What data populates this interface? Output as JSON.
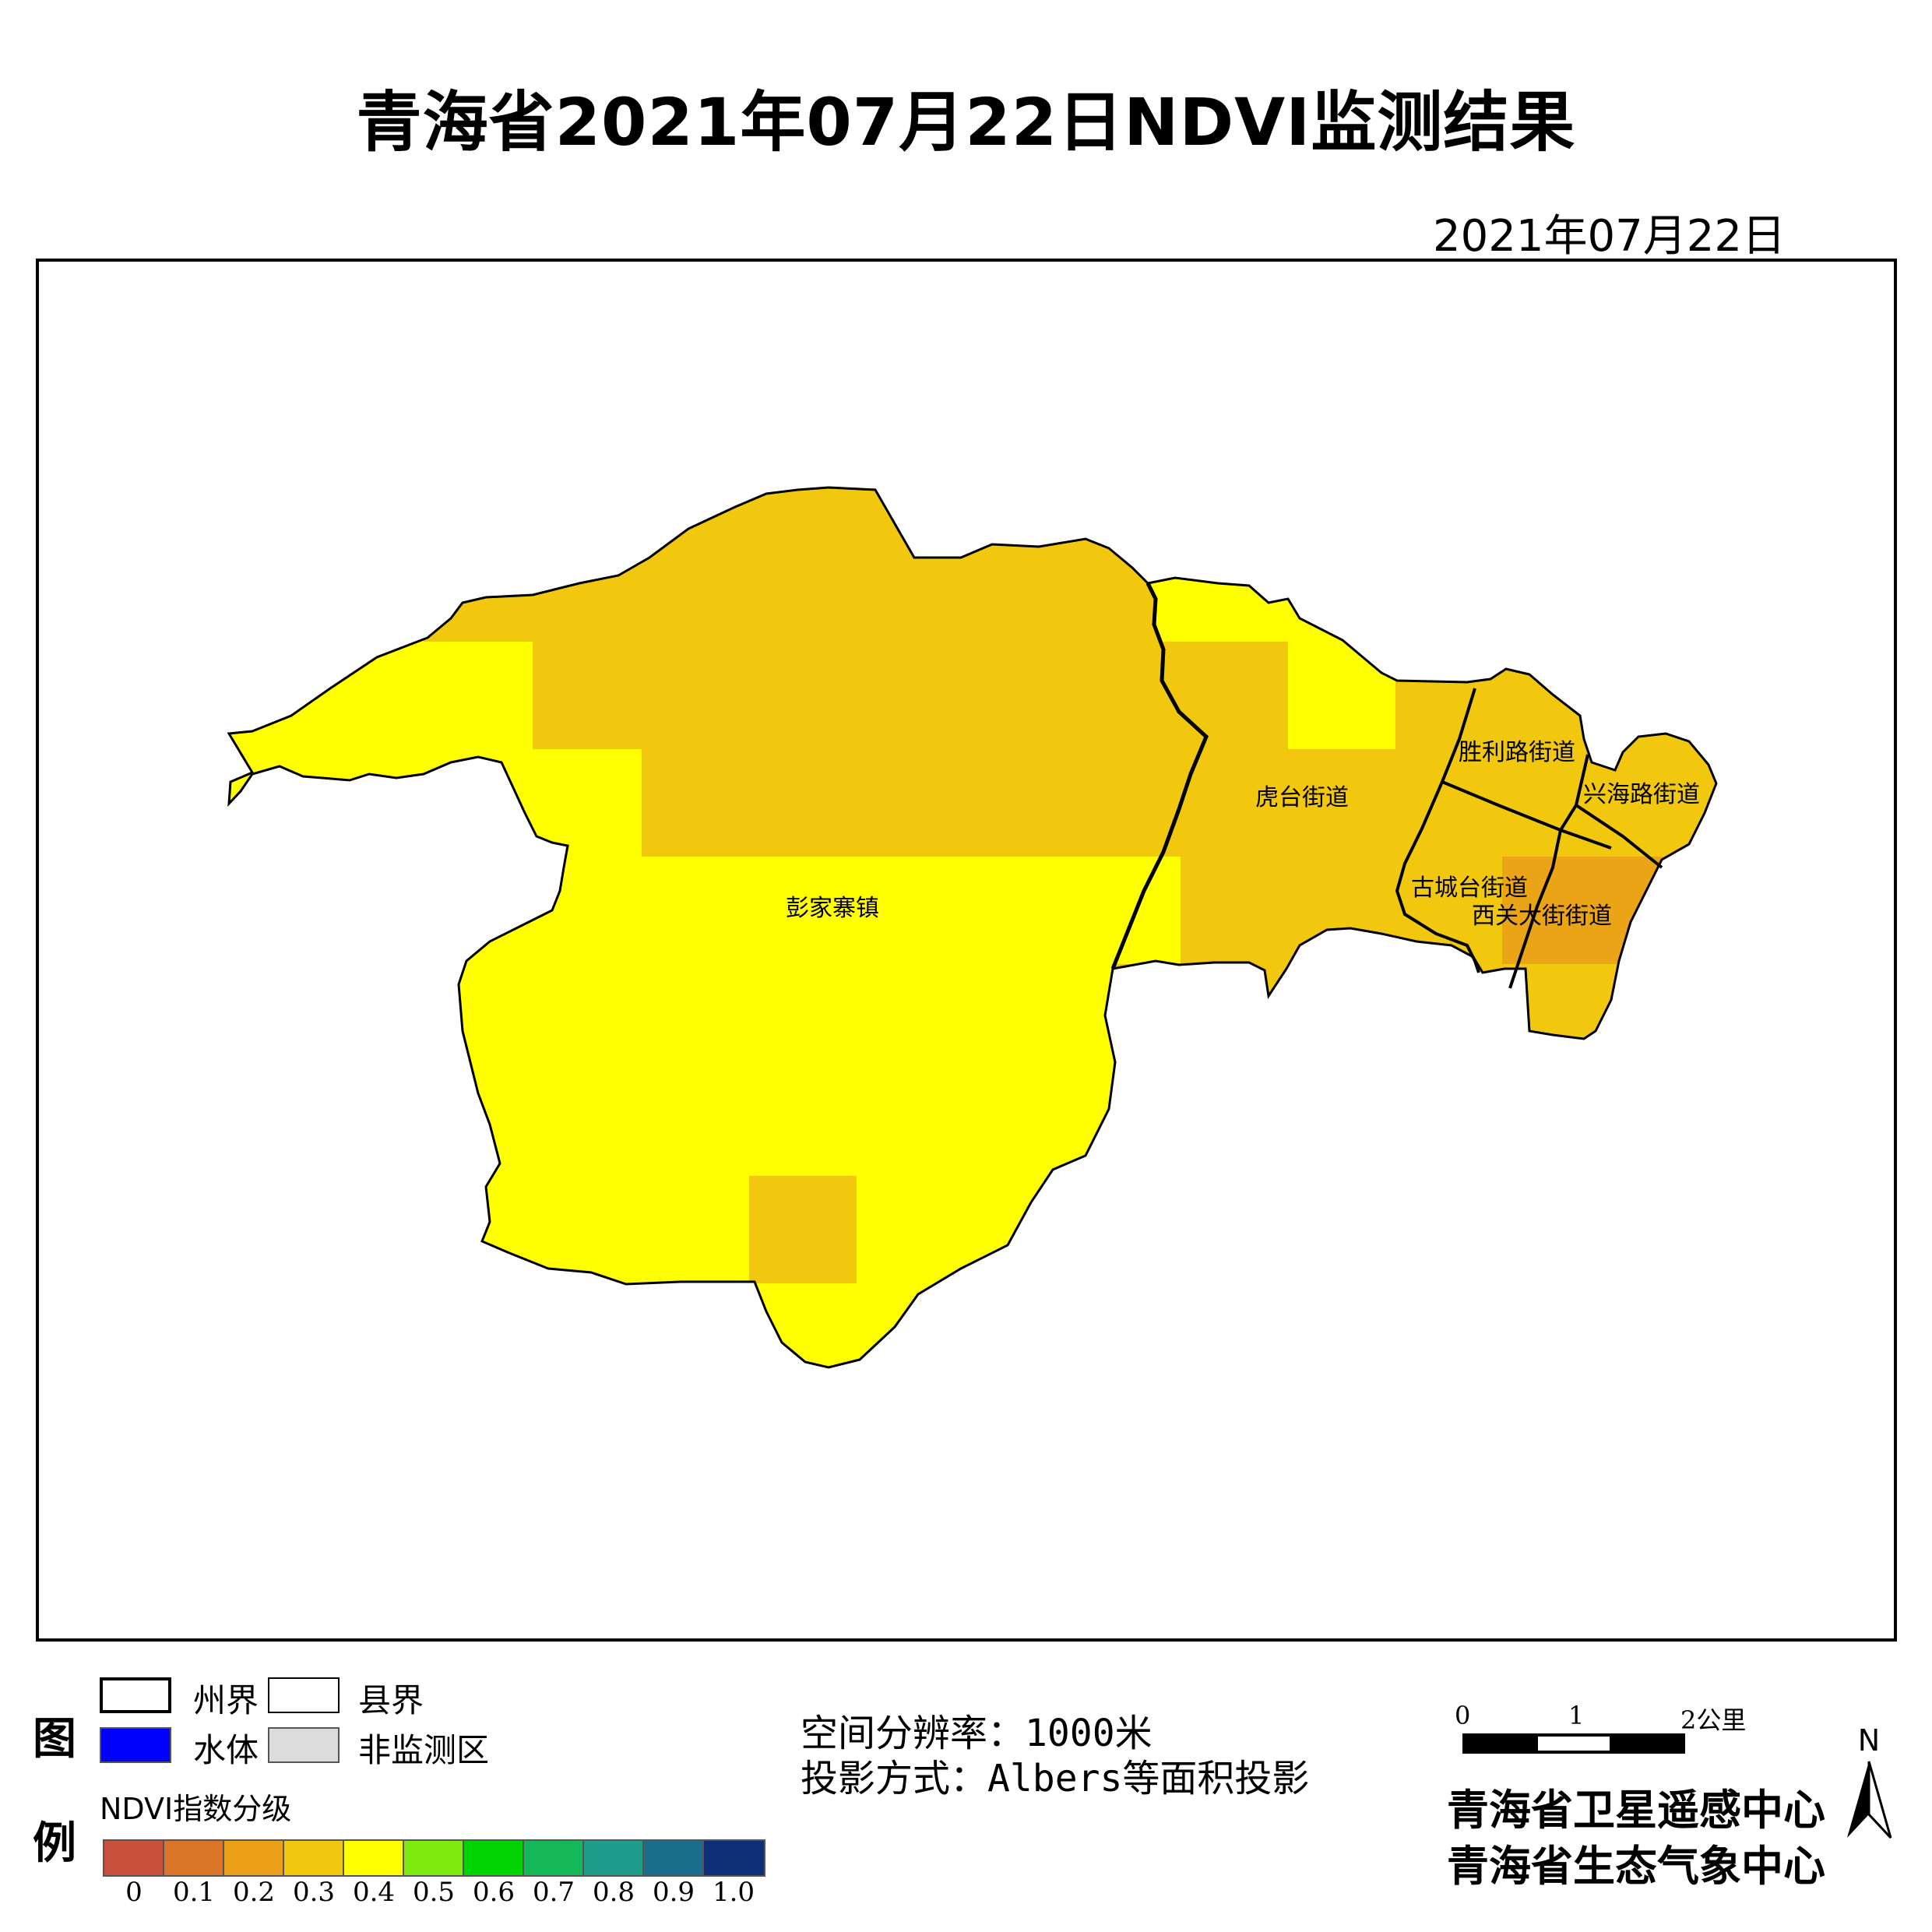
{
  "title": "青海省2021年07月22日NDVI监测结果",
  "date": "2021年07月22日",
  "map": {
    "places": [
      {
        "name": "彭家寨镇"
      },
      {
        "name": "虎台街道"
      },
      {
        "name": "胜利路街道"
      },
      {
        "name": "兴海路街道"
      },
      {
        "name": "古城台街道"
      },
      {
        "name": "西关大街街道"
      }
    ],
    "colors": {
      "ndvi_0_2_0_3": "#f2c80f",
      "ndvi_0_3_0_4": "#ffff00",
      "ndvi_0_2_dark": "#eba416",
      "boundary": "#000000"
    }
  },
  "legend": {
    "title_top": "图",
    "title_bottom": "例",
    "items": [
      {
        "label": "州界",
        "swatch": "#ffffff"
      },
      {
        "label": "县界",
        "swatch": "#ffffff"
      },
      {
        "label": "水体",
        "swatch": "#0000ff"
      },
      {
        "label": "非监测区",
        "swatch": "#dcdcdc"
      }
    ],
    "ndvi_heading": "NDVI指数分级",
    "ramp_colors": [
      "#c9513b",
      "#db7527",
      "#ea9f18",
      "#f2c80f",
      "#ffff00",
      "#7fea0f",
      "#00d400",
      "#15b859",
      "#1e9b8a",
      "#196f8b",
      "#0f2e78"
    ],
    "ticks": [
      "0",
      "0.1",
      "0.2",
      "0.3",
      "0.4",
      "0.5",
      "0.6",
      "0.7",
      "0.8",
      "0.9",
      "1.0"
    ]
  },
  "info": {
    "resolution": "空间分辨率：1000米",
    "projection": "投影方式：Albers等面积投影"
  },
  "scale": {
    "labels": [
      "0",
      "1",
      "2公里"
    ]
  },
  "org": {
    "line1": "青海省卫星遥感中心",
    "line2": "青海省生态气象中心"
  },
  "north": "N"
}
